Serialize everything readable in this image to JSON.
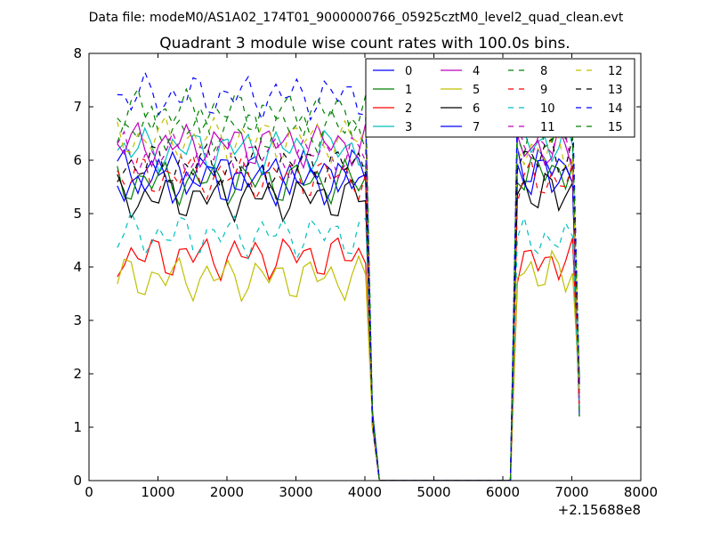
{
  "figure": {
    "suptitle": "Data file: modeM0/AS1A02_174T01_9000000766_05925cztM0_level2_quad_clean.evt"
  },
  "chart_data": {
    "type": "line",
    "title": "Quadrant 3 module wise count rates with 100.0s bins.",
    "xlabel": "",
    "ylabel": "",
    "xlim": [
      0,
      8000
    ],
    "ylim": [
      0,
      8
    ],
    "x_offset_label": "+2.15688e8",
    "xticks": [
      0,
      1000,
      2000,
      3000,
      4000,
      5000,
      6000,
      7000,
      8000
    ],
    "yticks": [
      0,
      1,
      2,
      3,
      4,
      5,
      6,
      7,
      8
    ],
    "grid": false,
    "legend_position": "top-right",
    "legend_columns": 4,
    "segments": [
      {
        "x_start": 410,
        "x_end": 4010,
        "step": 100
      },
      {
        "x_start": 6110,
        "x_end": 7110,
        "step": 100
      }
    ],
    "gap_x": [
      4110,
      4210,
      5910,
      6010
    ],
    "series": [
      {
        "name": "0",
        "color": "#0000ff",
        "dash": "solid",
        "base": 5.8,
        "base2": 5.9
      },
      {
        "name": "1",
        "color": "#008000",
        "dash": "solid",
        "base": 5.6,
        "base2": 5.8
      },
      {
        "name": "2",
        "color": "#ff0000",
        "dash": "solid",
        "base": 4.2,
        "base2": 4.1
      },
      {
        "name": "3",
        "color": "#00bfbf",
        "dash": "solid",
        "base": 6.2,
        "base2": 6.3
      },
      {
        "name": "4",
        "color": "#bf00bf",
        "dash": "solid",
        "base": 6.3,
        "base2": 6.2
      },
      {
        "name": "5",
        "color": "#bfbf00",
        "dash": "solid",
        "base": 3.8,
        "base2": 3.9
      },
      {
        "name": "6",
        "color": "#000000",
        "dash": "solid",
        "base": 5.3,
        "base2": 5.4
      },
      {
        "name": "7",
        "color": "#0000ff",
        "dash": "solid",
        "base": 5.6,
        "base2": 5.7
      },
      {
        "name": "8",
        "color": "#008000",
        "dash": "dashed",
        "base": 6.6,
        "base2": 6.5
      },
      {
        "name": "9",
        "color": "#ff0000",
        "dash": "dashed",
        "base": 5.7,
        "base2": 5.6
      },
      {
        "name": "10",
        "color": "#00bfbf",
        "dash": "dashed",
        "base": 4.6,
        "base2": 4.5
      },
      {
        "name": "11",
        "color": "#bf00bf",
        "dash": "dashed",
        "base": 6.1,
        "base2": 6.3
      },
      {
        "name": "12",
        "color": "#bfbf00",
        "dash": "dashed",
        "base": 6.4,
        "base2": 6.2
      },
      {
        "name": "13",
        "color": "#000000",
        "dash": "dashed",
        "base": 5.9,
        "base2": 6.1
      },
      {
        "name": "14",
        "color": "#0000ff",
        "dash": "dashed",
        "base": 7.2,
        "base2": 6.9
      },
      {
        "name": "15",
        "color": "#008000",
        "dash": "dashed",
        "base": 6.9,
        "base2": 6.7
      }
    ]
  }
}
